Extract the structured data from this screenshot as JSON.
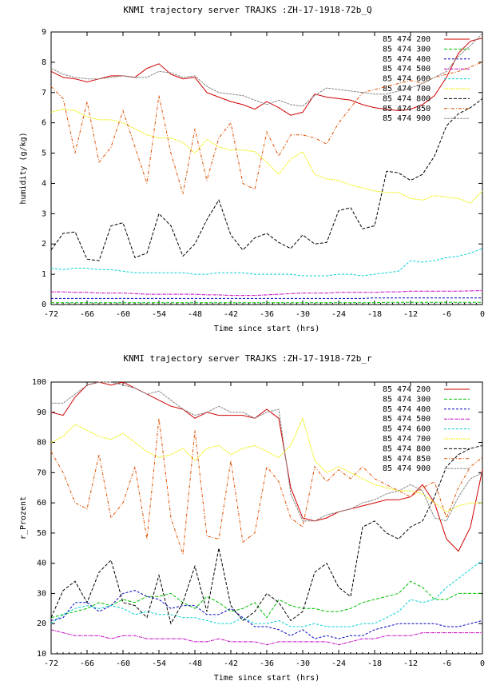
{
  "colors": [
    "#d00000",
    "#00c000",
    "#0000c0",
    "#c000c0",
    "#00d0d0",
    "#f0f000",
    "#000000",
    "#e05000",
    "#888888"
  ],
  "legend_labels": [
    "85 474 200",
    "85 474 300",
    "85 474 400",
    "85 474 500",
    "85 474 600",
    "85 474 700",
    "85 474 800",
    "85 474 850",
    "85 474 900"
  ],
  "chart_data": [
    {
      "type": "line",
      "title": "KNMI trajectory server TRAJKS :ZH-17-1918-72b_Q",
      "xlabel": "Time since start (hrs)",
      "ylabel": "humidity (g/kg)",
      "xlim": [
        -72,
        0
      ],
      "ylim": [
        0,
        9
      ],
      "xticks": [
        -72,
        -66,
        -60,
        -54,
        -48,
        -42,
        -36,
        -30,
        -24,
        -18,
        -12,
        -6,
        0
      ],
      "yticks": [
        0,
        1,
        2,
        3,
        4,
        5,
        6,
        7,
        8,
        9
      ],
      "legend_position": "top-right",
      "x": [
        -72,
        -70,
        -68,
        -66,
        -64,
        -62,
        -60,
        -58,
        -56,
        -54,
        -52,
        -50,
        -48,
        -46,
        -44,
        -42,
        -40,
        -38,
        -36,
        -34,
        -32,
        -30,
        -28,
        -26,
        -24,
        -22,
        -20,
        -18,
        -16,
        -14,
        -12,
        -10,
        -8,
        -6,
        -4,
        -2,
        0
      ],
      "series": [
        {
          "name": "85 474 200",
          "values": [
            7.7,
            7.5,
            7.45,
            7.35,
            7.45,
            7.55,
            7.55,
            7.5,
            7.8,
            7.95,
            7.6,
            7.45,
            7.5,
            7.0,
            6.85,
            6.7,
            6.6,
            6.45,
            6.7,
            6.5,
            6.25,
            6.35,
            6.95,
            6.85,
            6.8,
            6.75,
            6.6,
            6.5,
            6.45,
            6.4,
            6.45,
            6.6,
            6.9,
            7.5,
            8.3,
            8.7,
            8.8
          ]
        },
        {
          "name": "85 474 300",
          "values": [
            0.06,
            0.06,
            0.06,
            0.06,
            0.06,
            0.06,
            0.06,
            0.06,
            0.06,
            0.06,
            0.06,
            0.06,
            0.06,
            0.06,
            0.06,
            0.06,
            0.06,
            0.06,
            0.06,
            0.06,
            0.06,
            0.06,
            0.06,
            0.06,
            0.06,
            0.06,
            0.06,
            0.06,
            0.07,
            0.07,
            0.07,
            0.07,
            0.07,
            0.07,
            0.07,
            0.07,
            0.07
          ]
        },
        {
          "name": "85 474 400",
          "values": [
            0.2,
            0.2,
            0.2,
            0.2,
            0.2,
            0.2,
            0.2,
            0.2,
            0.2,
            0.2,
            0.2,
            0.2,
            0.2,
            0.2,
            0.2,
            0.2,
            0.2,
            0.2,
            0.2,
            0.2,
            0.2,
            0.2,
            0.2,
            0.2,
            0.2,
            0.2,
            0.2,
            0.22,
            0.22,
            0.22,
            0.22,
            0.22,
            0.22,
            0.22,
            0.22,
            0.22,
            0.22
          ]
        },
        {
          "name": "85 474 500",
          "values": [
            0.42,
            0.42,
            0.4,
            0.4,
            0.38,
            0.38,
            0.38,
            0.36,
            0.34,
            0.34,
            0.34,
            0.34,
            0.34,
            0.32,
            0.32,
            0.3,
            0.3,
            0.3,
            0.32,
            0.34,
            0.36,
            0.38,
            0.38,
            0.38,
            0.4,
            0.4,
            0.4,
            0.4,
            0.42,
            0.42,
            0.44,
            0.44,
            0.44,
            0.44,
            0.44,
            0.45,
            0.46
          ]
        },
        {
          "name": "85 474 600",
          "values": [
            1.2,
            1.15,
            1.2,
            1.2,
            1.15,
            1.15,
            1.1,
            1.05,
            1.05,
            1.05,
            1.05,
            1.05,
            1.0,
            1.0,
            1.05,
            1.05,
            1.05,
            1.0,
            1.0,
            1.0,
            1.0,
            0.95,
            0.95,
            0.95,
            1.0,
            1.0,
            0.95,
            1.0,
            1.05,
            1.1,
            1.45,
            1.4,
            1.45,
            1.55,
            1.6,
            1.7,
            1.85
          ]
        },
        {
          "name": "85 474 700",
          "values": [
            6.35,
            6.45,
            6.4,
            6.2,
            6.1,
            6.1,
            6.0,
            5.8,
            5.6,
            5.5,
            5.5,
            5.35,
            5.0,
            5.45,
            5.2,
            5.1,
            5.1,
            5.05,
            4.7,
            4.3,
            4.8,
            5.05,
            4.3,
            4.15,
            4.1,
            3.95,
            3.85,
            3.75,
            3.7,
            3.7,
            3.5,
            3.45,
            3.6,
            3.55,
            3.5,
            3.35,
            3.75
          ]
        },
        {
          "name": "85 474 800",
          "values": [
            1.8,
            2.35,
            2.4,
            1.5,
            1.45,
            2.6,
            2.7,
            1.55,
            1.7,
            3.0,
            2.6,
            1.6,
            2.0,
            2.8,
            3.45,
            2.3,
            1.8,
            2.2,
            2.35,
            2.05,
            1.85,
            2.3,
            2.0,
            2.05,
            3.1,
            3.2,
            2.5,
            2.6,
            4.4,
            4.35,
            4.1,
            4.3,
            4.9,
            5.9,
            6.3,
            6.5,
            6.8
          ]
        },
        {
          "name": "85 474 850",
          "values": [
            7.2,
            6.8,
            5.0,
            6.7,
            4.7,
            5.2,
            6.4,
            5.2,
            4.0,
            6.9,
            5.0,
            3.65,
            5.8,
            4.1,
            5.5,
            6.0,
            4.0,
            3.8,
            5.7,
            4.9,
            5.6,
            5.6,
            5.5,
            5.3,
            6.0,
            6.5,
            7.0,
            7.1,
            7.2,
            7.3,
            7.4,
            7.3,
            7.5,
            7.6,
            7.7,
            7.85,
            8.0
          ]
        },
        {
          "name": "85 474 900",
          "values": [
            7.8,
            7.6,
            7.5,
            7.45,
            7.45,
            7.5,
            7.55,
            7.5,
            7.5,
            7.7,
            7.65,
            7.5,
            7.55,
            7.2,
            7.0,
            6.95,
            6.9,
            6.75,
            6.6,
            6.75,
            6.6,
            6.55,
            6.9,
            7.15,
            7.1,
            7.05,
            7.0,
            6.95,
            6.95,
            7.05,
            7.15,
            7.3,
            7.5,
            7.7,
            8.2,
            8.55,
            8.95
          ]
        }
      ]
    },
    {
      "type": "line",
      "title": "KNMI trajectory server TRAJKS :ZH-17-1918-72b_r",
      "xlabel": "Time since start (hrs)",
      "ylabel": "r_Prozent",
      "xlim": [
        -72,
        0
      ],
      "ylim": [
        10,
        100
      ],
      "xticks": [
        -72,
        -66,
        -60,
        -54,
        -48,
        -42,
        -36,
        -30,
        -24,
        -18,
        -12,
        -6,
        0
      ],
      "yticks": [
        10,
        20,
        30,
        40,
        50,
        60,
        70,
        80,
        90,
        100
      ],
      "legend_position": "top-right",
      "x": [
        -72,
        -70,
        -68,
        -66,
        -64,
        -62,
        -60,
        -58,
        -56,
        -54,
        -52,
        -50,
        -48,
        -46,
        -44,
        -42,
        -40,
        -38,
        -36,
        -34,
        -32,
        -30,
        -28,
        -26,
        -24,
        -22,
        -20,
        -18,
        -16,
        -14,
        -12,
        -10,
        -8,
        -6,
        -4,
        -2,
        0
      ],
      "series": [
        {
          "name": "85 474 200",
          "values": [
            90,
            89,
            95,
            99,
            100,
            99,
            100,
            98,
            96,
            94,
            92,
            91,
            88,
            90,
            89,
            89,
            89,
            88,
            91,
            88,
            65,
            55,
            54,
            55,
            57,
            58,
            59,
            60,
            61,
            61,
            62,
            66,
            60,
            48,
            44,
            52,
            71
          ]
        },
        {
          "name": "85 474 300",
          "values": [
            22,
            23,
            24,
            25,
            27,
            26,
            28,
            27,
            29,
            29,
            30,
            27,
            25,
            29,
            27,
            24,
            25,
            27,
            22,
            28,
            26,
            25,
            25,
            24,
            24,
            25,
            27,
            28,
            29,
            30,
            34,
            32,
            28,
            28,
            30,
            30,
            30
          ]
        },
        {
          "name": "85 474 400",
          "values": [
            21,
            22,
            27,
            27,
            24,
            26,
            30,
            31,
            29,
            28,
            25,
            26,
            26,
            23,
            23,
            25,
            22,
            19,
            19,
            18,
            16,
            18,
            15,
            16,
            15,
            16,
            16,
            18,
            19,
            20,
            20,
            20,
            20,
            19,
            19,
            20,
            21
          ]
        },
        {
          "name": "85 474 500",
          "values": [
            18,
            17,
            16,
            16,
            16,
            15,
            16,
            16,
            15,
            15,
            15,
            15,
            14,
            14,
            15,
            14,
            14,
            14,
            13,
            14,
            14,
            14,
            14,
            14,
            13,
            14,
            15,
            15,
            16,
            16,
            16,
            17,
            17,
            17,
            17,
            17,
            17
          ]
        },
        {
          "name": "85 474 600",
          "values": [
            20,
            23,
            25,
            26,
            25,
            26,
            25,
            23,
            24,
            23,
            23,
            22,
            22,
            21,
            20,
            20,
            22,
            20,
            20,
            21,
            19,
            19,
            20,
            19,
            19,
            19,
            20,
            20,
            22,
            24,
            28,
            27,
            28,
            32,
            35,
            38,
            41
          ]
        },
        {
          "name": "85 474 700",
          "values": [
            80,
            82,
            86,
            84,
            82,
            81,
            83,
            80,
            77,
            75,
            76,
            78,
            74,
            78,
            79,
            76,
            78,
            79,
            77,
            75,
            79,
            88,
            74,
            70,
            72,
            70,
            68,
            66,
            65,
            64,
            64,
            63,
            60,
            57,
            59,
            60,
            60
          ]
        },
        {
          "name": "85 474 800",
          "values": [
            22,
            31,
            34,
            27,
            37,
            41,
            27,
            26,
            22,
            36,
            20,
            27,
            39,
            24,
            45,
            26,
            21,
            24,
            30,
            27,
            21,
            24,
            37,
            40,
            32,
            29,
            52,
            54,
            50,
            48,
            52,
            54,
            62,
            72,
            76,
            78,
            79
          ]
        },
        {
          "name": "85 474 850",
          "values": [
            77,
            70,
            60,
            58,
            76,
            55,
            60,
            72,
            48,
            88,
            55,
            43,
            84,
            49,
            48,
            74,
            47,
            50,
            72,
            67,
            55,
            52,
            72,
            67,
            71,
            68,
            72,
            68,
            66,
            64,
            62,
            65,
            67,
            55,
            65,
            72,
            75
          ]
        },
        {
          "name": "85 474 900",
          "values": [
            93,
            93,
            96,
            99,
            100,
            100,
            99,
            98,
            96,
            97,
            94,
            91,
            89,
            90,
            92,
            90,
            90,
            88,
            90,
            91,
            63,
            54,
            54,
            56,
            57,
            58,
            60,
            61,
            63,
            64,
            66,
            64,
            55,
            54,
            62,
            68,
            70
          ]
        }
      ]
    }
  ]
}
